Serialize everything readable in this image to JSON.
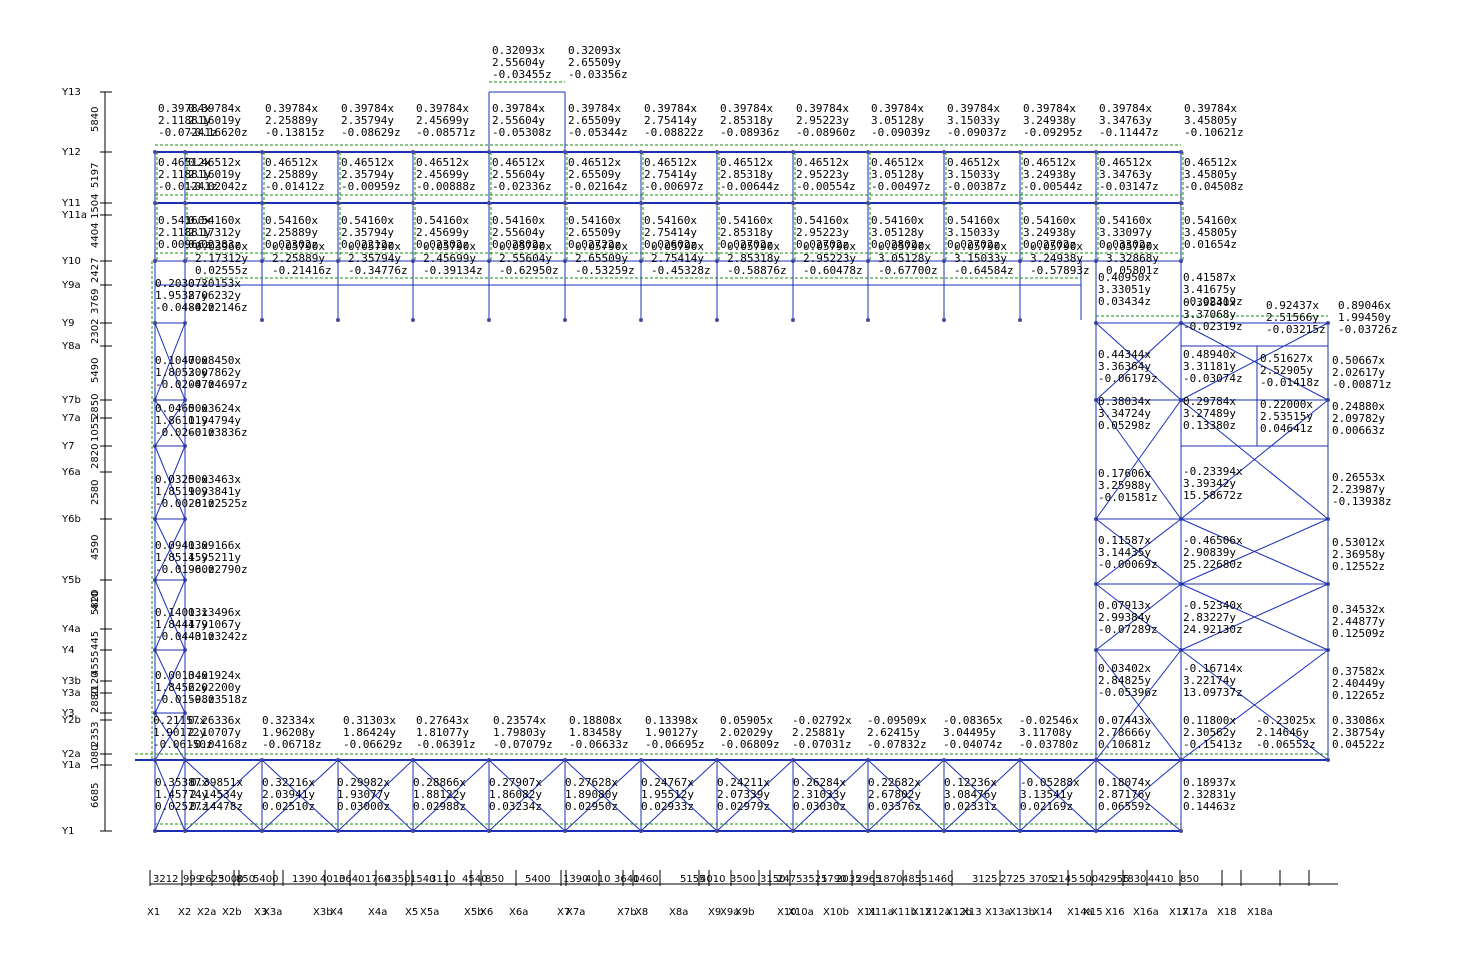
{
  "colors": {
    "frame": "#1a2fb8",
    "joint": "#4a4a9a",
    "dashed": "#1a8a1a",
    "text": "#000000"
  },
  "grid_y": [
    "Y13",
    "Y12",
    "Y11",
    "Y11a",
    "Y10",
    "Y9a",
    "Y9",
    "Y8a",
    "Y7b",
    "Y7a",
    "Y7",
    "Y6a",
    "Y6b",
    "Y5b",
    "Y4a",
    "Y4",
    "Y3b",
    "Y3a",
    "Y3",
    "Y2b",
    "Y2a",
    "Y1a",
    "Y1"
  ],
  "spans_y": [
    "5840",
    "5197",
    "1504",
    "4404",
    "2427",
    "3769",
    "2302",
    "5490",
    "2850",
    "1055",
    "2820",
    "2580",
    "4590",
    "410",
    "5820",
    "445",
    "4555",
    "2120",
    "2880",
    "2353",
    "1080",
    "6685"
  ],
  "grid_x": [
    "X1",
    "X2",
    "X2a",
    "X2b",
    "X3",
    "X3a",
    "X3b",
    "X4",
    "X4a",
    "X5",
    "X5a",
    "X5b",
    "X6",
    "X6a",
    "X7",
    "X7a",
    "X7b",
    "X8",
    "X8a",
    "X9",
    "X9a",
    "X9b",
    "X10",
    "X10a",
    "X10b",
    "X11",
    "X11a",
    "X11b",
    "X12",
    "X12a",
    "X12b",
    "X13",
    "X13a",
    "X13b",
    "X14",
    "X14a",
    "X15",
    "X16",
    "X16a",
    "X17",
    "X17a",
    "X18",
    "X18a"
  ],
  "spans_x": [
    "3212",
    "999",
    "2625",
    "3000",
    "850",
    "5400",
    "1390",
    "4010",
    "3640",
    "1760",
    "4350",
    "1540",
    "3110",
    "4540",
    "850",
    "5400",
    "1390",
    "4010",
    "3640",
    "1460",
    "5155",
    "4010",
    "3500",
    "3150",
    "2475",
    "3525",
    "1790",
    "2035",
    "2965",
    "1870",
    "4855",
    "1460",
    "3125",
    "2725",
    "3705",
    "2145",
    "5004",
    "2955",
    "1830",
    "4410",
    "850"
  ],
  "row_top": [
    [
      "0.39784x",
      "2.11881y",
      "-0.07241z"
    ],
    [
      "0.39784x",
      "2.16019y",
      "-0.16620z"
    ],
    [
      "0.39784x",
      "2.25889y",
      "-0.13815z"
    ],
    [
      "0.39784x",
      "2.35794y",
      "-0.08629z"
    ],
    [
      "0.39784x",
      "2.45699y",
      "-0.08571z"
    ],
    [
      "0.39784x",
      "2.55604y",
      "-0.05308z"
    ],
    [
      "0.39784x",
      "2.65509y",
      "-0.05344z"
    ],
    [
      "0.39784x",
      "2.75414y",
      "-0.08822z"
    ],
    [
      "0.39784x",
      "2.85318y",
      "-0.08936z"
    ],
    [
      "0.39784x",
      "2.95223y",
      "-0.08960z"
    ],
    [
      "0.39784x",
      "3.05128y",
      "-0.09039z"
    ],
    [
      "0.39784x",
      "3.15033y",
      "-0.09037z"
    ],
    [
      "0.39784x",
      "3.24938y",
      "-0.09295z"
    ],
    [
      "0.39784x",
      "3.34763y",
      "-0.11447z"
    ],
    [
      "0.39784x",
      "3.45805y",
      "-0.10621z"
    ]
  ],
  "row_peak": [
    [
      "0.32093x",
      "2.55604y",
      "-0.03455z"
    ],
    [
      "0.32093x",
      "2.65509y",
      "-0.03356z"
    ]
  ],
  "row_y12": [
    [
      "0.46512x",
      "2.11881y",
      "-0.01241z"
    ],
    [
      "0.46512x",
      "2.16019y",
      "-0.02042z"
    ],
    [
      "0.46512x",
      "2.25889y",
      "-0.01412z"
    ],
    [
      "0.46512x",
      "2.35794y",
      "-0.00959z"
    ],
    [
      "0.46512x",
      "2.45699y",
      "-0.00888z"
    ],
    [
      "0.46512x",
      "2.55604y",
      "-0.02336z"
    ],
    [
      "0.46512x",
      "2.65509y",
      "-0.02164z"
    ],
    [
      "0.46512x",
      "2.75414y",
      "-0.00697z"
    ],
    [
      "0.46512x",
      "2.85318y",
      "-0.00644z"
    ],
    [
      "0.46512x",
      "2.95223y",
      "-0.00554z"
    ],
    [
      "0.46512x",
      "3.05128y",
      "-0.00497z"
    ],
    [
      "0.46512x",
      "3.15033y",
      "-0.00387z"
    ],
    [
      "0.46512x",
      "3.24938y",
      "-0.00544z"
    ],
    [
      "0.46512x",
      "3.34763y",
      "-0.03147z"
    ],
    [
      "0.46512x",
      "3.45805y",
      "-0.04508z"
    ]
  ],
  "row_y11a": [
    [
      "0.54160x",
      "2.11881y",
      "0.00966z"
    ],
    [
      "0.54160x",
      "2.17312y",
      "0.02283z"
    ],
    [
      "0.54160x",
      "2.25889y",
      "0.02302z"
    ],
    [
      "0.54160x",
      "2.35794y",
      "0.02212z"
    ],
    [
      "0.54160x",
      "2.45699y",
      "0.02302z"
    ],
    [
      "0.54160x",
      "2.55604y",
      "0.02802z"
    ],
    [
      "0.54160x",
      "2.65509y",
      "0.02722z"
    ],
    [
      "0.54160x",
      "2.75414y",
      "0.02602z"
    ],
    [
      "0.54160x",
      "2.85318y",
      "0.02702z"
    ],
    [
      "0.54160x",
      "2.95223y",
      "0.02702z"
    ],
    [
      "0.54160x",
      "3.05128y",
      "0.02802z"
    ],
    [
      "0.54160x",
      "3.15033y",
      "0.02702z"
    ],
    [
      "0.54160x",
      "3.24938y",
      "0.02702z"
    ],
    [
      "0.54160x",
      "3.33097y",
      "0.03302z"
    ],
    [
      "0.54160x",
      "3.45805y",
      "0.01654z"
    ]
  ],
  "row_y10": [
    [
      "0.03960x",
      "2.17312y",
      "0.02555z"
    ],
    [
      "0.05790x",
      "2.25889y",
      "-0.21416z"
    ],
    [
      "0.05790x",
      "2.35794y",
      "-0.34776z"
    ],
    [
      "0.05790x",
      "2.45699y",
      "-0.39134z"
    ],
    [
      "0.05790x",
      "2.55604y",
      "-0.62950z"
    ],
    [
      "0.05790x",
      "2.65509y",
      "-0.53259z"
    ],
    [
      "0.05790x",
      "2.75414y",
      "-0.45328z"
    ],
    [
      "0.05790x",
      "2.85318y",
      "-0.58876z"
    ],
    [
      "0.05790x",
      "2.95223y",
      "-0.60478z"
    ],
    [
      "0.05790x",
      "3.05128y",
      "-0.67700z"
    ],
    [
      "0.05790x",
      "3.15033y",
      "-0.64584z"
    ],
    [
      "0.05790x",
      "3.24938y",
      "-0.57893z"
    ],
    [
      "0.05790x",
      "3.32868y",
      "0.05801z"
    ]
  ],
  "row_left": [
    [
      "0.20307x",
      "1.95387y",
      "-0.04842z"
    ],
    [
      "0.20153x",
      "2.06232y",
      "-0.02146z"
    ],
    [
      "0.10470x",
      "1.80530y",
      "-0.02047z"
    ],
    [
      "0.08450x",
      "2.07862y",
      "-0.04697z"
    ],
    [
      "0.04650x",
      "1.86101y",
      "-0.02601z"
    ],
    [
      "0.03624x",
      "1.94794y",
      "-0.03836z"
    ],
    [
      "0.03250x",
      "1.85190y",
      "-0.00281z"
    ],
    [
      "0.03463x",
      "1.93841y",
      "-0.02525z"
    ],
    [
      "0.09413x",
      "1.85145y",
      "-0.01960z"
    ],
    [
      "0.09166x",
      "1.95211y",
      "-0.02790z"
    ],
    [
      "0.14013x",
      "1.84447y",
      "-0.04431z"
    ],
    [
      "0.13496x",
      "1.91067y",
      "-0.03242z"
    ],
    [
      "0.00134x",
      "1.84562y",
      "-0.01598z"
    ],
    [
      "0.01924x",
      "2.02200y",
      "-0.03518z"
    ]
  ],
  "row_y2b": [
    [
      "0.21157x",
      "1.90172y",
      "-0.06150z"
    ],
    [
      "0.26336x",
      "2.10707y",
      "-0.04168z"
    ],
    [
      "0.32334x",
      "1.96208y",
      "-0.06718z"
    ],
    [
      "0.31303x",
      "1.86424y",
      "-0.06629z"
    ],
    [
      "0.27643x",
      "1.81077y",
      "-0.06391z"
    ],
    [
      "0.23574x",
      "1.79803y",
      "-0.07079z"
    ],
    [
      "0.18808x",
      "1.83458y",
      "-0.06633z"
    ],
    [
      "0.13398x",
      "1.90127y",
      "-0.06695z"
    ],
    [
      "0.05905x",
      "2.02029y",
      "-0.06809z"
    ],
    [
      "-0.02792x",
      "2.25881y",
      "-0.07031z"
    ],
    [
      "-0.09509x",
      "2.62415y",
      "-0.07832z"
    ],
    [
      "-0.08365x",
      "3.04495y",
      "-0.04074z"
    ],
    [
      "-0.02546x",
      "3.11708y",
      "-0.03780z"
    ],
    [
      "0.07443x",
      "2.78666y",
      "0.10681z"
    ],
    [
      "0.11800x",
      "2.30562y",
      "-0.15413z"
    ],
    [
      "-0.23025x",
      "2.14646y",
      "-0.06552z"
    ],
    [
      "0.33086x",
      "2.38754y",
      "0.04522z"
    ]
  ],
  "row_y1": [
    [
      "0.35387x",
      "1.45774y",
      "0.02527z"
    ],
    [
      "0.39851x",
      "2.14534y",
      "0.14478z"
    ],
    [
      "0.32216x",
      "2.03941y",
      "0.02510z"
    ],
    [
      "0.29982x",
      "1.93077y",
      "0.03000z"
    ],
    [
      "0.28866x",
      "1.88122y",
      "0.02988z"
    ],
    [
      "0.27907x",
      "1.86082y",
      "0.03234z"
    ],
    [
      "0.27628x",
      "1.89080y",
      "0.02950z"
    ],
    [
      "0.24767x",
      "1.95512y",
      "0.02933z"
    ],
    [
      "0.24211x",
      "2.07339y",
      "0.02979z"
    ],
    [
      "0.26284x",
      "2.31033y",
      "0.03030z"
    ],
    [
      "0.22682x",
      "2.67802y",
      "0.03376z"
    ],
    [
      "0.12236x",
      "3.08476y",
      "0.02331z"
    ],
    [
      "-0.05288x",
      "3.13541y",
      "0.02169z"
    ],
    [
      "0.18074x",
      "2.87176y",
      "0.06559z"
    ],
    [
      "0.18937x",
      "2.32831y",
      "0.14463z"
    ]
  ],
  "row_right": [
    [
      "0.41587x",
      "3.41675y",
      "-0.02319z"
    ],
    [
      "0.40950x",
      "3.33051y",
      "0.03434z"
    ],
    [
      "0.39840x",
      "3.37068y",
      "-0.02319z"
    ],
    [
      "0.92437x",
      "2.51566y",
      "-0.03215z"
    ],
    [
      "0.89046x",
      "1.99450y",
      "-0.03726z"
    ],
    [
      "0.44344x",
      "3.36364y",
      "-0.06179z"
    ],
    [
      "0.48940x",
      "3.31181y",
      "-0.03074z"
    ],
    [
      "0.51627x",
      "2.52905y",
      "-0.01418z"
    ],
    [
      "0.50667x",
      "2.02617y",
      "-0.00871z"
    ],
    [
      "0.38034x",
      "3.34724y",
      "0.05298z"
    ],
    [
      "0.29784x",
      "3.27489y",
      "0.13380z"
    ],
    [
      "0.22000x",
      "2.53515y",
      "0.04641z"
    ],
    [
      "0.24880x",
      "2.09782y",
      "0.00663z"
    ],
    [
      "0.17606x",
      "3.25988y",
      "-0.01581z"
    ],
    [
      "-0.23394x",
      "3.39342y",
      "15.58672z"
    ],
    [
      "0.26553x",
      "2.23987y",
      "-0.13938z"
    ],
    [
      "0.11587x",
      "3.14435y",
      "-0.00069z"
    ],
    [
      "-0.46506x",
      "2.90839y",
      "25.22680z"
    ],
    [
      "0.53012x",
      "2.36958y",
      "0.12552z"
    ],
    [
      "0.07913x",
      "2.99384y",
      "-0.07289z"
    ],
    [
      "-0.52340x",
      "2.83227y",
      "24.92130z"
    ],
    [
      "0.34532x",
      "2.44877y",
      "0.12509z"
    ],
    [
      "0.03402x",
      "2.84825y",
      "-0.05396z"
    ],
    [
      "-0.16714x",
      "3.22174y",
      "13.09737z"
    ],
    [
      "0.37582x",
      "2.40449y",
      "0.12265z"
    ]
  ]
}
